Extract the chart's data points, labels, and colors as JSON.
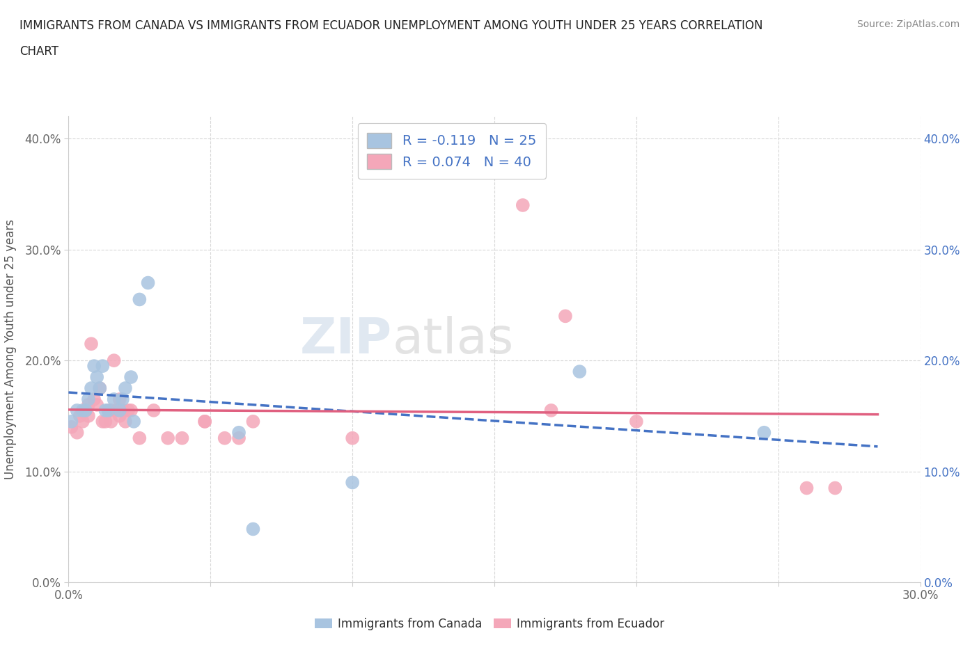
{
  "title_line1": "IMMIGRANTS FROM CANADA VS IMMIGRANTS FROM ECUADOR UNEMPLOYMENT AMONG YOUTH UNDER 25 YEARS CORRELATION",
  "title_line2": "CHART",
  "source": "Source: ZipAtlas.com",
  "ylabel": "Unemployment Among Youth under 25 years",
  "xlim": [
    0.0,
    0.3
  ],
  "ylim": [
    0.0,
    0.42
  ],
  "xticks": [
    0.0,
    0.05,
    0.1,
    0.15,
    0.2,
    0.25,
    0.3
  ],
  "yticks": [
    0.0,
    0.1,
    0.2,
    0.3,
    0.4
  ],
  "ytick_labels": [
    "0.0%",
    "10.0%",
    "20.0%",
    "30.0%",
    "40.0%"
  ],
  "canada_color": "#a8c4e0",
  "ecuador_color": "#f4a7b9",
  "canada_line_color": "#4472c4",
  "ecuador_line_color": "#e06080",
  "canada_line_style": "--",
  "ecuador_line_style": "-",
  "R_canada": -0.119,
  "N_canada": 25,
  "R_ecuador": 0.074,
  "N_ecuador": 40,
  "canada_x": [
    0.001,
    0.003,
    0.005,
    0.006,
    0.007,
    0.008,
    0.009,
    0.01,
    0.011,
    0.012,
    0.013,
    0.014,
    0.016,
    0.018,
    0.019,
    0.02,
    0.022,
    0.023,
    0.025,
    0.028,
    0.06,
    0.065,
    0.1,
    0.18,
    0.245
  ],
  "canada_y": [
    0.145,
    0.155,
    0.155,
    0.155,
    0.165,
    0.175,
    0.195,
    0.185,
    0.175,
    0.195,
    0.155,
    0.155,
    0.165,
    0.155,
    0.165,
    0.175,
    0.185,
    0.145,
    0.255,
    0.27,
    0.135,
    0.048,
    0.09,
    0.19,
    0.135
  ],
  "ecuador_x": [
    0.001,
    0.003,
    0.004,
    0.005,
    0.006,
    0.007,
    0.007,
    0.008,
    0.009,
    0.01,
    0.011,
    0.012,
    0.013,
    0.014,
    0.015,
    0.015,
    0.016,
    0.017,
    0.018,
    0.018,
    0.019,
    0.02,
    0.021,
    0.022,
    0.025,
    0.03,
    0.035,
    0.04,
    0.048,
    0.048,
    0.055,
    0.06,
    0.065,
    0.1,
    0.16,
    0.17,
    0.175,
    0.2,
    0.26,
    0.27
  ],
  "ecuador_y": [
    0.14,
    0.135,
    0.15,
    0.145,
    0.155,
    0.15,
    0.16,
    0.215,
    0.165,
    0.16,
    0.175,
    0.145,
    0.145,
    0.155,
    0.145,
    0.155,
    0.2,
    0.155,
    0.15,
    0.165,
    0.155,
    0.145,
    0.155,
    0.155,
    0.13,
    0.155,
    0.13,
    0.13,
    0.145,
    0.145,
    0.13,
    0.13,
    0.145,
    0.13,
    0.34,
    0.155,
    0.24,
    0.145,
    0.085,
    0.085
  ],
  "background_color": "#ffffff",
  "grid_color": "#d8d8d8",
  "grid_style": "--",
  "watermark_text": "ZIPatlas",
  "legend_label_canada": "Immigrants from Canada",
  "legend_label_ecuador": "Immigrants from Ecuador",
  "right_tick_color": "#4472c4",
  "left_tick_color": "#666666",
  "title_color": "#222222",
  "source_color": "#888888"
}
